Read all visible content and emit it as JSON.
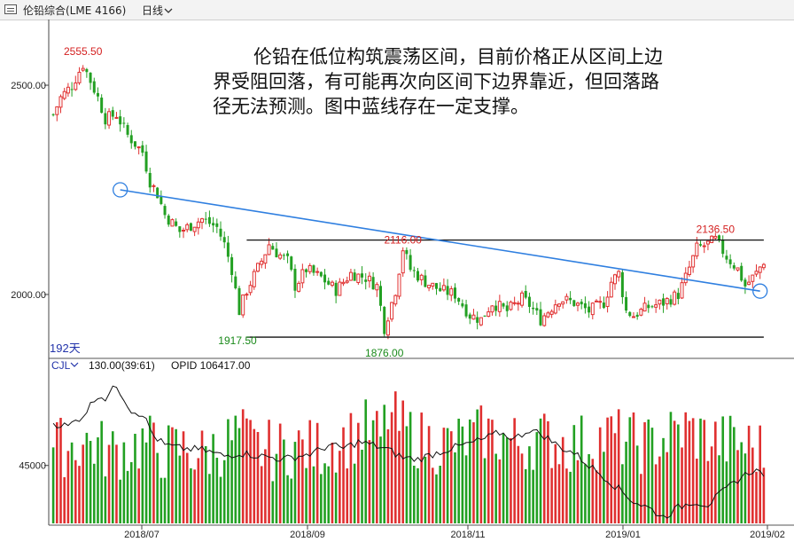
{
  "header": {
    "instrument": "伦铅综合(LME 4166)",
    "period": "日线",
    "period_icon": "chevron-down-icon"
  },
  "annotation": {
    "line1": "伦铅在低位构筑震荡区间，目前价格正从区间上边",
    "line2": "界受阻回落，有可能再次向区间下边界靠近，但回落路",
    "line3": "径无法预测。图中蓝线存在一定支撑。"
  },
  "colors": {
    "up": "#e03030",
    "down": "#22a022",
    "trendline": "#2f7fe0",
    "label_up": "#d42020",
    "label_down": "#1a8a1a",
    "text_blue": "#2233aa"
  },
  "chart_data": [
    {
      "type": "candlestick",
      "y_ticks": [
        2500,
        2000
      ],
      "y_tick_labels": [
        "2500.00",
        "2000.00"
      ],
      "ylim": [
        1860,
        2640
      ],
      "x_tick_labels": [
        "2018/07",
        "2018/09",
        "2018/11",
        "2019/01",
        "2019/02"
      ],
      "bar_count": 192,
      "bar_count_label": "192天",
      "high_label": "2555.50",
      "low_label_1": "1917.50",
      "low_label_2": "1876.00",
      "range_top_label": "2116.00",
      "recent_high_label": "2136.50",
      "range_top": 2130,
      "range_bottom": 1898,
      "trendline": {
        "start": [
          18,
          2250
        ],
        "end": [
          190,
          2008
        ]
      },
      "anchors": [
        [
          0,
          2430
        ],
        [
          2,
          2470
        ],
        [
          5,
          2500
        ],
        [
          8,
          2550
        ],
        [
          10,
          2510
        ],
        [
          12,
          2470
        ],
        [
          14,
          2420
        ],
        [
          17,
          2430
        ],
        [
          20,
          2380
        ],
        [
          24,
          2340
        ],
        [
          26,
          2270
        ],
        [
          28,
          2240
        ],
        [
          30,
          2190
        ],
        [
          34,
          2150
        ],
        [
          38,
          2170
        ],
        [
          40,
          2180
        ],
        [
          44,
          2160
        ],
        [
          46,
          2120
        ],
        [
          48,
          2060
        ],
        [
          50,
          1960
        ],
        [
          52,
          2010
        ],
        [
          56,
          2080
        ],
        [
          58,
          2120
        ],
        [
          60,
          2100
        ],
        [
          63,
          2080
        ],
        [
          65,
          2020
        ],
        [
          68,
          2060
        ],
        [
          72,
          2040
        ],
        [
          76,
          2010
        ],
        [
          80,
          2050
        ],
        [
          84,
          2040
        ],
        [
          87,
          2020
        ],
        [
          89,
          1920
        ],
        [
          92,
          2010
        ],
        [
          94,
          2110
        ],
        [
          96,
          2060
        ],
        [
          100,
          2030
        ],
        [
          104,
          2010
        ],
        [
          108,
          2000
        ],
        [
          112,
          1950
        ],
        [
          115,
          1940
        ],
        [
          118,
          1980
        ],
        [
          122,
          1960
        ],
        [
          126,
          1990
        ],
        [
          128,
          1975
        ],
        [
          131,
          1940
        ],
        [
          133,
          1960
        ],
        [
          136,
          1990
        ],
        [
          140,
          1980
        ],
        [
          144,
          1960
        ],
        [
          148,
          1980
        ],
        [
          150,
          2030
        ],
        [
          152,
          2050
        ],
        [
          154,
          1960
        ],
        [
          156,
          1950
        ],
        [
          160,
          1970
        ],
        [
          164,
          1980
        ],
        [
          168,
          2000
        ],
        [
          170,
          2040
        ],
        [
          173,
          2110
        ],
        [
          176,
          2120
        ],
        [
          178,
          2130
        ],
        [
          181,
          2090
        ],
        [
          184,
          2060
        ],
        [
          186,
          2020
        ],
        [
          189,
          2050
        ],
        [
          191,
          2080
        ]
      ]
    },
    {
      "type": "bar",
      "indicator": "CJL",
      "indicator_icon": "chevron-down-icon",
      "param_label": "130.00(39:61)",
      "opid_label": "OPID 106417.00",
      "y_ticks": [
        45000
      ],
      "y_tick_labels": [
        "45000"
      ],
      "ylim": [
        8000,
        110000
      ],
      "volume_anchors": [
        [
          0,
          48000
        ],
        [
          5,
          50000
        ],
        [
          10,
          52000
        ],
        [
          15,
          45000
        ],
        [
          20,
          48000
        ],
        [
          25,
          52000
        ],
        [
          30,
          45000
        ],
        [
          34,
          48000
        ],
        [
          40,
          44000
        ],
        [
          46,
          50000
        ],
        [
          50,
          58000
        ],
        [
          54,
          48000
        ],
        [
          60,
          46000
        ],
        [
          65,
          49000
        ],
        [
          70,
          47000
        ],
        [
          76,
          52000
        ],
        [
          80,
          55000
        ],
        [
          84,
          60000
        ],
        [
          88,
          54000
        ],
        [
          90,
          70000
        ],
        [
          93,
          62000
        ],
        [
          98,
          54000
        ],
        [
          104,
          50000
        ],
        [
          110,
          52000
        ],
        [
          116,
          58000
        ],
        [
          120,
          55000
        ],
        [
          126,
          50000
        ],
        [
          130,
          55000
        ],
        [
          135,
          52000
        ],
        [
          140,
          50000
        ],
        [
          145,
          53000
        ],
        [
          150,
          56000
        ],
        [
          155,
          52000
        ],
        [
          160,
          50000
        ],
        [
          165,
          55000
        ],
        [
          170,
          60000
        ],
        [
          175,
          55000
        ],
        [
          180,
          52000
        ],
        [
          186,
          50000
        ],
        [
          191,
          46000
        ]
      ],
      "line_anchors": [
        [
          0,
          72000
        ],
        [
          4,
          70000
        ],
        [
          8,
          77000
        ],
        [
          12,
          90000
        ],
        [
          14,
          88000
        ],
        [
          17,
          96000
        ],
        [
          21,
          80000
        ],
        [
          24,
          78000
        ],
        [
          27,
          64000
        ],
        [
          30,
          58000
        ],
        [
          34,
          56000
        ],
        [
          40,
          55000
        ],
        [
          46,
          51000
        ],
        [
          50,
          53000
        ],
        [
          56,
          51000
        ],
        [
          62,
          49000
        ],
        [
          66,
          51000
        ],
        [
          70,
          53000
        ],
        [
          74,
          58000
        ],
        [
          78,
          56000
        ],
        [
          82,
          60000
        ],
        [
          86,
          58000
        ],
        [
          90,
          55000
        ],
        [
          94,
          50000
        ],
        [
          98,
          49000
        ],
        [
          103,
          53000
        ],
        [
          107,
          56000
        ],
        [
          112,
          59000
        ],
        [
          116,
          62000
        ],
        [
          120,
          66000
        ],
        [
          124,
          62000
        ],
        [
          128,
          68000
        ],
        [
          132,
          64000
        ],
        [
          136,
          57000
        ],
        [
          140,
          53000
        ],
        [
          144,
          45000
        ],
        [
          148,
          38000
        ],
        [
          152,
          30000
        ],
        [
          156,
          22000
        ],
        [
          160,
          18000
        ],
        [
          164,
          12000
        ],
        [
          168,
          18000
        ],
        [
          172,
          22000
        ],
        [
          176,
          20000
        ],
        [
          180,
          28000
        ],
        [
          184,
          36000
        ],
        [
          188,
          42000
        ],
        [
          191,
          40000
        ]
      ]
    }
  ]
}
